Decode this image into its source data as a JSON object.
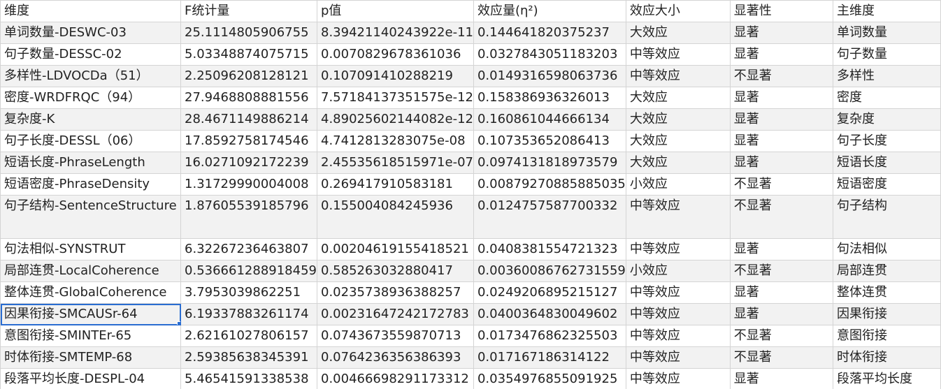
{
  "columns": [
    "维度",
    "F统计量",
    "p值",
    "效应量(η²)",
    "效应大小",
    "显著性",
    "主维度"
  ],
  "rows": [
    [
      "单词数量-DESWC-03",
      "25.1114805906755",
      "8.39421140243922e-11",
      "0.144641820375237",
      "大效应",
      "显著",
      "单词数量"
    ],
    [
      "句子数量-DESSC-02",
      "5.03348874075715",
      "0.0070829678361036",
      "0.0327843051183203",
      "中等效应",
      "显著",
      "句子数量"
    ],
    [
      "多样性-LDVOCDa（51）",
      "2.25096208128121",
      "0.107091410288219",
      "0.0149316598063736",
      "中等效应",
      "不显著",
      "多样性"
    ],
    [
      "密度-WRDFRQC（94）",
      "27.9468808881556",
      "7.57184137351575e-12",
      "0.158386936326013",
      "大效应",
      "显著",
      "密度"
    ],
    [
      "复杂度-K",
      "28.4671149886214",
      "4.89025602144082e-12",
      "0.160861044666134",
      "大效应",
      "显著",
      "复杂度"
    ],
    [
      "句子长度-DESSL（06）",
      "17.8592758174546",
      "4.7412813283075e-08",
      "0.107353652086413",
      "大效应",
      "显著",
      "句子长度"
    ],
    [
      "短语长度-PhraseLength",
      "16.0271092172239",
      "2.45535618515971e-07",
      "0.0974131818973579",
      "大效应",
      "显著",
      "短语长度"
    ],
    [
      "短语密度-PhraseDensity",
      "1.31729990004008",
      "0.269417910583181",
      "0.00879270885885035",
      "小效应",
      "不显著",
      "短语密度"
    ],
    [
      "句子结构-SentenceStructure",
      "1.87605539185796",
      "0.155004084245936",
      "0.0124757587700332",
      "中等效应",
      "不显著",
      "句子结构"
    ],
    [
      "句法相似-SYNSTRUT",
      "6.32267236463807",
      "0.00204619155418521",
      "0.0408381554721323",
      "中等效应",
      "显著",
      "句法相似"
    ],
    [
      "局部连贯-LocalCoherence",
      "0.536661288918459",
      "0.585263032880417",
      "0.00360086762731559",
      "小效应",
      "不显著",
      "局部连贯"
    ],
    [
      "整体连贯-GlobalCoherence",
      "3.7953039862251",
      "0.0235738936388257",
      "0.0249206895215127",
      "中等效应",
      "显著",
      "整体连贯"
    ],
    [
      "因果衔接-SMCAUSr-64",
      "6.19337883261174",
      "0.00231647242172783",
      "0.0400364830049602",
      "中等效应",
      "显著",
      "因果衔接"
    ],
    [
      "意图衔接-SMINTEr-65",
      "2.62161027806157",
      "0.0743673559870713",
      "0.0173476862325503",
      "中等效应",
      "不显著",
      "意图衔接"
    ],
    [
      "时体衔接-SMTEMP-68",
      "2.59385638345391",
      "0.0764236356386393",
      "0.017167186314122",
      "中等效应",
      "不显著",
      "时体衔接"
    ],
    [
      "段落平均长度-DESPL-04",
      "5.46541591338538",
      "0.00466698291173312",
      "0.0354976855091925",
      "中等效应",
      "显著",
      "段落平均长度"
    ]
  ],
  "selection": {
    "row": 12,
    "col": 0,
    "accent": "#2a6dd1"
  }
}
